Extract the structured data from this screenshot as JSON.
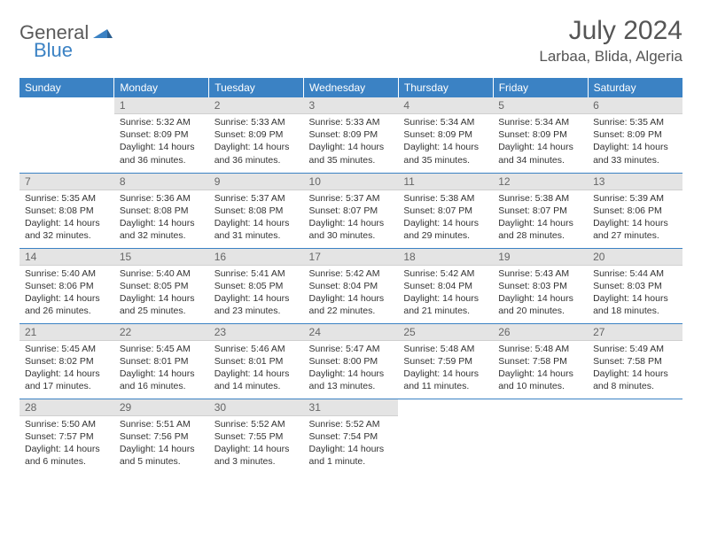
{
  "logo": {
    "part1": "General",
    "part2": "Blue"
  },
  "title": "July 2024",
  "location": "Larbaa, Blida, Algeria",
  "headerColor": "#3b82c4",
  "dayHeaders": [
    "Sunday",
    "Monday",
    "Tuesday",
    "Wednesday",
    "Thursday",
    "Friday",
    "Saturday"
  ],
  "weeks": [
    [
      {
        "n": "",
        "sr": "",
        "ss": "",
        "dl": ""
      },
      {
        "n": "1",
        "sr": "Sunrise: 5:32 AM",
        "ss": "Sunset: 8:09 PM",
        "dl": "Daylight: 14 hours and 36 minutes."
      },
      {
        "n": "2",
        "sr": "Sunrise: 5:33 AM",
        "ss": "Sunset: 8:09 PM",
        "dl": "Daylight: 14 hours and 36 minutes."
      },
      {
        "n": "3",
        "sr": "Sunrise: 5:33 AM",
        "ss": "Sunset: 8:09 PM",
        "dl": "Daylight: 14 hours and 35 minutes."
      },
      {
        "n": "4",
        "sr": "Sunrise: 5:34 AM",
        "ss": "Sunset: 8:09 PM",
        "dl": "Daylight: 14 hours and 35 minutes."
      },
      {
        "n": "5",
        "sr": "Sunrise: 5:34 AM",
        "ss": "Sunset: 8:09 PM",
        "dl": "Daylight: 14 hours and 34 minutes."
      },
      {
        "n": "6",
        "sr": "Sunrise: 5:35 AM",
        "ss": "Sunset: 8:09 PM",
        "dl": "Daylight: 14 hours and 33 minutes."
      }
    ],
    [
      {
        "n": "7",
        "sr": "Sunrise: 5:35 AM",
        "ss": "Sunset: 8:08 PM",
        "dl": "Daylight: 14 hours and 32 minutes."
      },
      {
        "n": "8",
        "sr": "Sunrise: 5:36 AM",
        "ss": "Sunset: 8:08 PM",
        "dl": "Daylight: 14 hours and 32 minutes."
      },
      {
        "n": "9",
        "sr": "Sunrise: 5:37 AM",
        "ss": "Sunset: 8:08 PM",
        "dl": "Daylight: 14 hours and 31 minutes."
      },
      {
        "n": "10",
        "sr": "Sunrise: 5:37 AM",
        "ss": "Sunset: 8:07 PM",
        "dl": "Daylight: 14 hours and 30 minutes."
      },
      {
        "n": "11",
        "sr": "Sunrise: 5:38 AM",
        "ss": "Sunset: 8:07 PM",
        "dl": "Daylight: 14 hours and 29 minutes."
      },
      {
        "n": "12",
        "sr": "Sunrise: 5:38 AM",
        "ss": "Sunset: 8:07 PM",
        "dl": "Daylight: 14 hours and 28 minutes."
      },
      {
        "n": "13",
        "sr": "Sunrise: 5:39 AM",
        "ss": "Sunset: 8:06 PM",
        "dl": "Daylight: 14 hours and 27 minutes."
      }
    ],
    [
      {
        "n": "14",
        "sr": "Sunrise: 5:40 AM",
        "ss": "Sunset: 8:06 PM",
        "dl": "Daylight: 14 hours and 26 minutes."
      },
      {
        "n": "15",
        "sr": "Sunrise: 5:40 AM",
        "ss": "Sunset: 8:05 PM",
        "dl": "Daylight: 14 hours and 25 minutes."
      },
      {
        "n": "16",
        "sr": "Sunrise: 5:41 AM",
        "ss": "Sunset: 8:05 PM",
        "dl": "Daylight: 14 hours and 23 minutes."
      },
      {
        "n": "17",
        "sr": "Sunrise: 5:42 AM",
        "ss": "Sunset: 8:04 PM",
        "dl": "Daylight: 14 hours and 22 minutes."
      },
      {
        "n": "18",
        "sr": "Sunrise: 5:42 AM",
        "ss": "Sunset: 8:04 PM",
        "dl": "Daylight: 14 hours and 21 minutes."
      },
      {
        "n": "19",
        "sr": "Sunrise: 5:43 AM",
        "ss": "Sunset: 8:03 PM",
        "dl": "Daylight: 14 hours and 20 minutes."
      },
      {
        "n": "20",
        "sr": "Sunrise: 5:44 AM",
        "ss": "Sunset: 8:03 PM",
        "dl": "Daylight: 14 hours and 18 minutes."
      }
    ],
    [
      {
        "n": "21",
        "sr": "Sunrise: 5:45 AM",
        "ss": "Sunset: 8:02 PM",
        "dl": "Daylight: 14 hours and 17 minutes."
      },
      {
        "n": "22",
        "sr": "Sunrise: 5:45 AM",
        "ss": "Sunset: 8:01 PM",
        "dl": "Daylight: 14 hours and 16 minutes."
      },
      {
        "n": "23",
        "sr": "Sunrise: 5:46 AM",
        "ss": "Sunset: 8:01 PM",
        "dl": "Daylight: 14 hours and 14 minutes."
      },
      {
        "n": "24",
        "sr": "Sunrise: 5:47 AM",
        "ss": "Sunset: 8:00 PM",
        "dl": "Daylight: 14 hours and 13 minutes."
      },
      {
        "n": "25",
        "sr": "Sunrise: 5:48 AM",
        "ss": "Sunset: 7:59 PM",
        "dl": "Daylight: 14 hours and 11 minutes."
      },
      {
        "n": "26",
        "sr": "Sunrise: 5:48 AM",
        "ss": "Sunset: 7:58 PM",
        "dl": "Daylight: 14 hours and 10 minutes."
      },
      {
        "n": "27",
        "sr": "Sunrise: 5:49 AM",
        "ss": "Sunset: 7:58 PM",
        "dl": "Daylight: 14 hours and 8 minutes."
      }
    ],
    [
      {
        "n": "28",
        "sr": "Sunrise: 5:50 AM",
        "ss": "Sunset: 7:57 PM",
        "dl": "Daylight: 14 hours and 6 minutes."
      },
      {
        "n": "29",
        "sr": "Sunrise: 5:51 AM",
        "ss": "Sunset: 7:56 PM",
        "dl": "Daylight: 14 hours and 5 minutes."
      },
      {
        "n": "30",
        "sr": "Sunrise: 5:52 AM",
        "ss": "Sunset: 7:55 PM",
        "dl": "Daylight: 14 hours and 3 minutes."
      },
      {
        "n": "31",
        "sr": "Sunrise: 5:52 AM",
        "ss": "Sunset: 7:54 PM",
        "dl": "Daylight: 14 hours and 1 minute."
      },
      {
        "n": "",
        "sr": "",
        "ss": "",
        "dl": ""
      },
      {
        "n": "",
        "sr": "",
        "ss": "",
        "dl": ""
      },
      {
        "n": "",
        "sr": "",
        "ss": "",
        "dl": ""
      }
    ]
  ]
}
